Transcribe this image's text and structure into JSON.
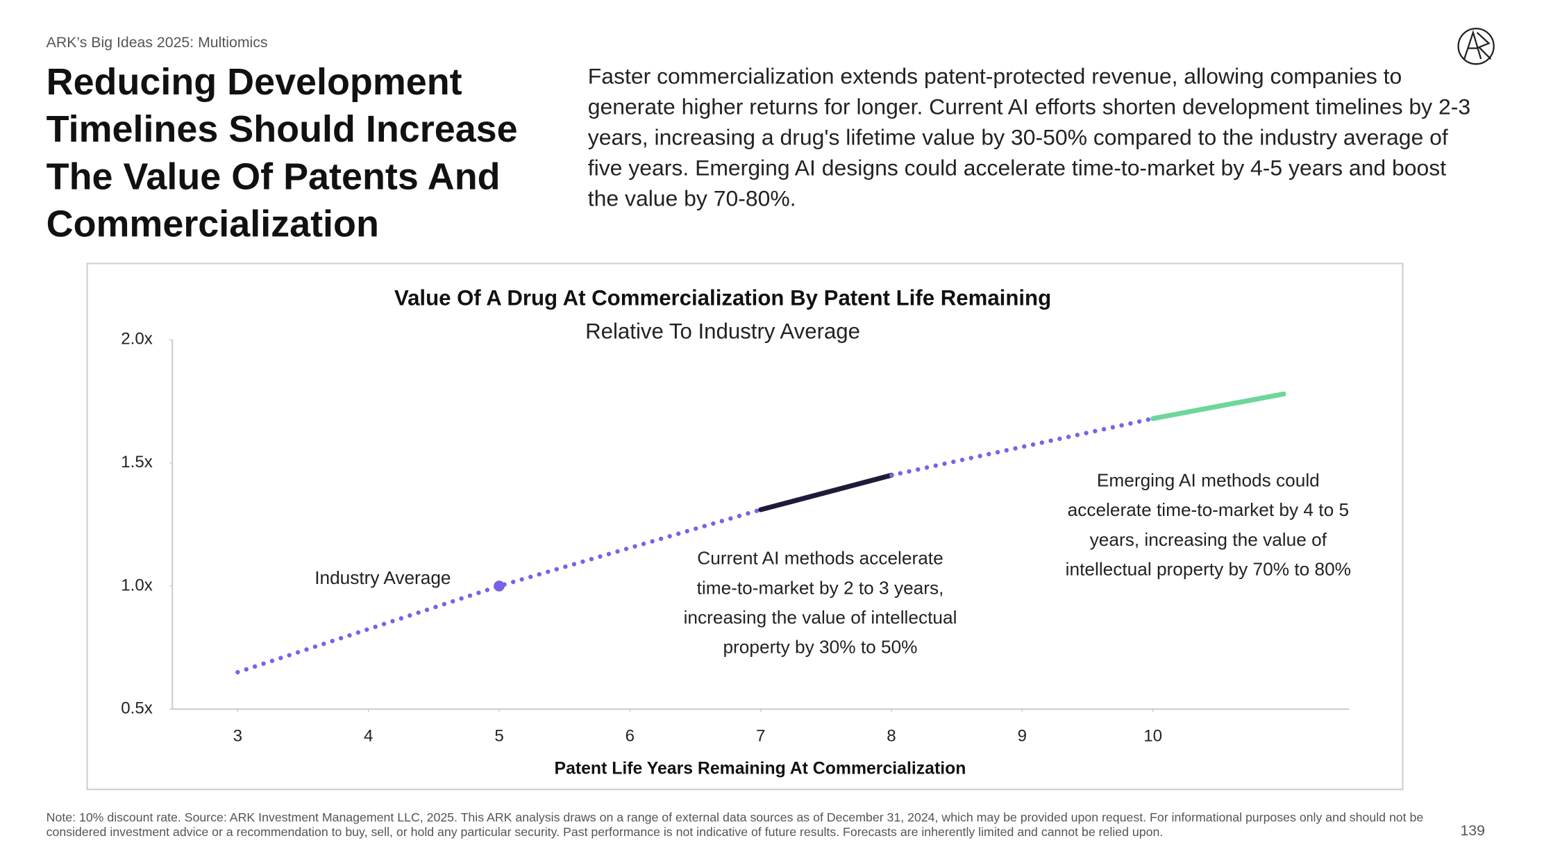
{
  "header": {
    "kicker": "ARK’s Big Ideas 2025: Multiomics",
    "title": "Reducing Development Timelines Should Increase The Value Of Patents And Commercialization",
    "description": "Faster commercialization extends patent-protected revenue, allowing companies to generate higher returns for longer. Current AI efforts shorten development timelines by 2-3 years, increasing a drug's lifetime value by 30-50% compared to the industry average of five years. Emerging AI designs could accelerate time-to-market by 4-5 years and boost the value by 70-80%."
  },
  "chart_data": {
    "type": "line",
    "title": "Value Of A Drug At Commercialization By Patent Life Remaining",
    "subtitle": "Relative To Industry Average",
    "xlabel": "Patent Life Years Remaining At Commercialization",
    "xlim": [
      2.5,
      11.5
    ],
    "xticks": [
      3,
      4,
      5,
      6,
      7,
      8,
      9,
      10
    ],
    "ylim": [
      0.5,
      2.0
    ],
    "yticks": [
      {
        "value": 0.5,
        "label": "0.5x"
      },
      {
        "value": 1.0,
        "label": "1.0x"
      },
      {
        "value": 1.5,
        "label": "1.5x"
      },
      {
        "value": 2.0,
        "label": "2.0x"
      }
    ],
    "grid": false,
    "series": [
      {
        "x": [
          3,
          5,
          7
        ],
        "values": [
          0.65,
          1.0,
          1.31
        ],
        "color": "#7b61e8",
        "style": "dotted"
      },
      {
        "x": [
          7,
          8
        ],
        "values": [
          1.31,
          1.45
        ],
        "color": "#1e1b3a",
        "style": "solid"
      },
      {
        "x": [
          8,
          10
        ],
        "values": [
          1.45,
          1.68
        ],
        "color": "#7b61e8",
        "style": "dotted"
      },
      {
        "x": [
          10,
          11
        ],
        "values": [
          1.68,
          1.78
        ],
        "color": "#6ed69a",
        "style": "solid"
      }
    ],
    "marker": {
      "x": 5,
      "value": 1.0,
      "label": "Industry Average",
      "color": "#7b61e8"
    },
    "annotations": [
      "Current AI methods accelerate time-to-market by 2 to 3 years, increasing the value of intellectual property by 30% to 50%",
      "Emerging AI methods could accelerate time-to-market by 4 to 5 years, increasing the value of intellectual property by 70% to 80%"
    ]
  },
  "footer": {
    "note": "Note: 10% discount rate. Source: ARK Investment Management LLC, 2025. This ARK analysis draws on a range of external data sources as of December 31, 2024, which may be provided upon request. For informational purposes only and should not be considered investment advice or a recommendation to buy, sell, or hold any particular security. Past performance is not indicative of future results. Forecasts are inherently limited and cannot be relied upon.",
    "page": "139"
  }
}
